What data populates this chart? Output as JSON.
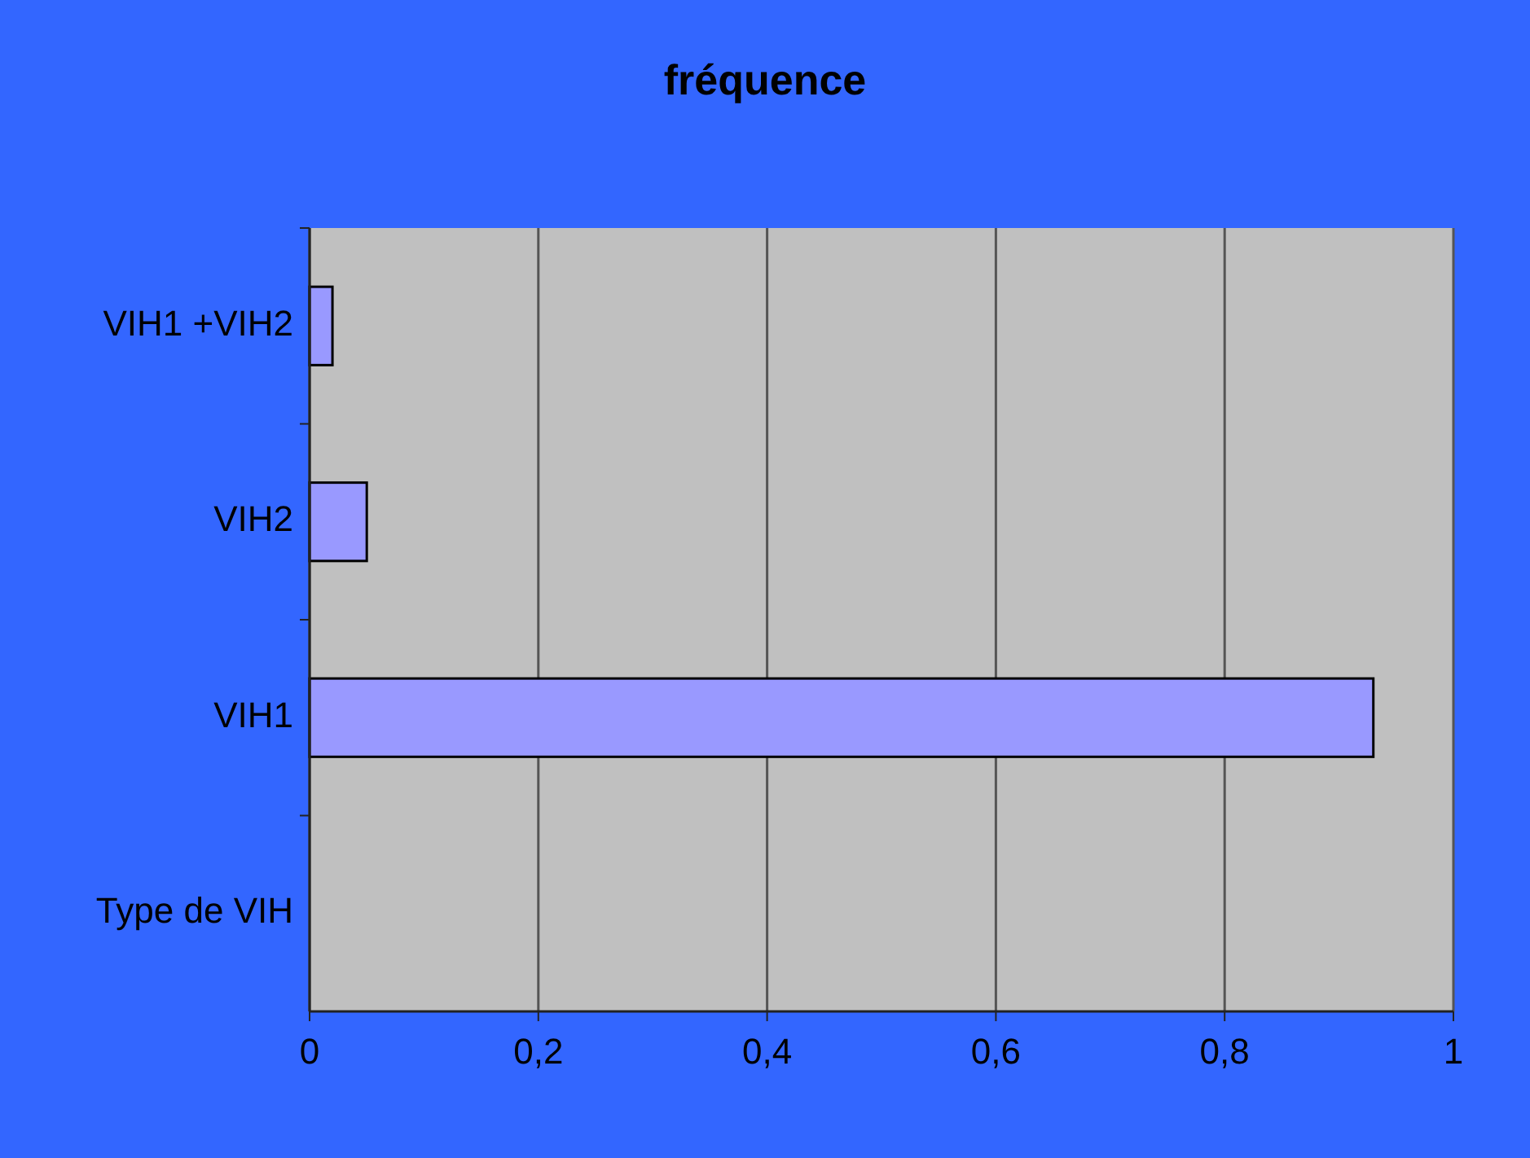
{
  "chart_data": {
    "type": "bar",
    "orientation": "horizontal",
    "title": "fréquence",
    "categories": [
      "VIH1 +VIH2",
      "VIH2",
      "VIH1",
      "Type de VIH"
    ],
    "values": [
      0.02,
      0.05,
      0.93,
      null
    ],
    "color": "#9999ff",
    "xlim": [
      0,
      1
    ],
    "xticks": [
      0,
      {
        "value": 0.2,
        "label": "0,2"
      },
      {
        "value": 0.4,
        "label": "0,4"
      },
      {
        "value": 0.6,
        "label": "0,6"
      },
      {
        "value": 0.8,
        "label": "0,8"
      },
      1
    ],
    "grid": "x"
  }
}
